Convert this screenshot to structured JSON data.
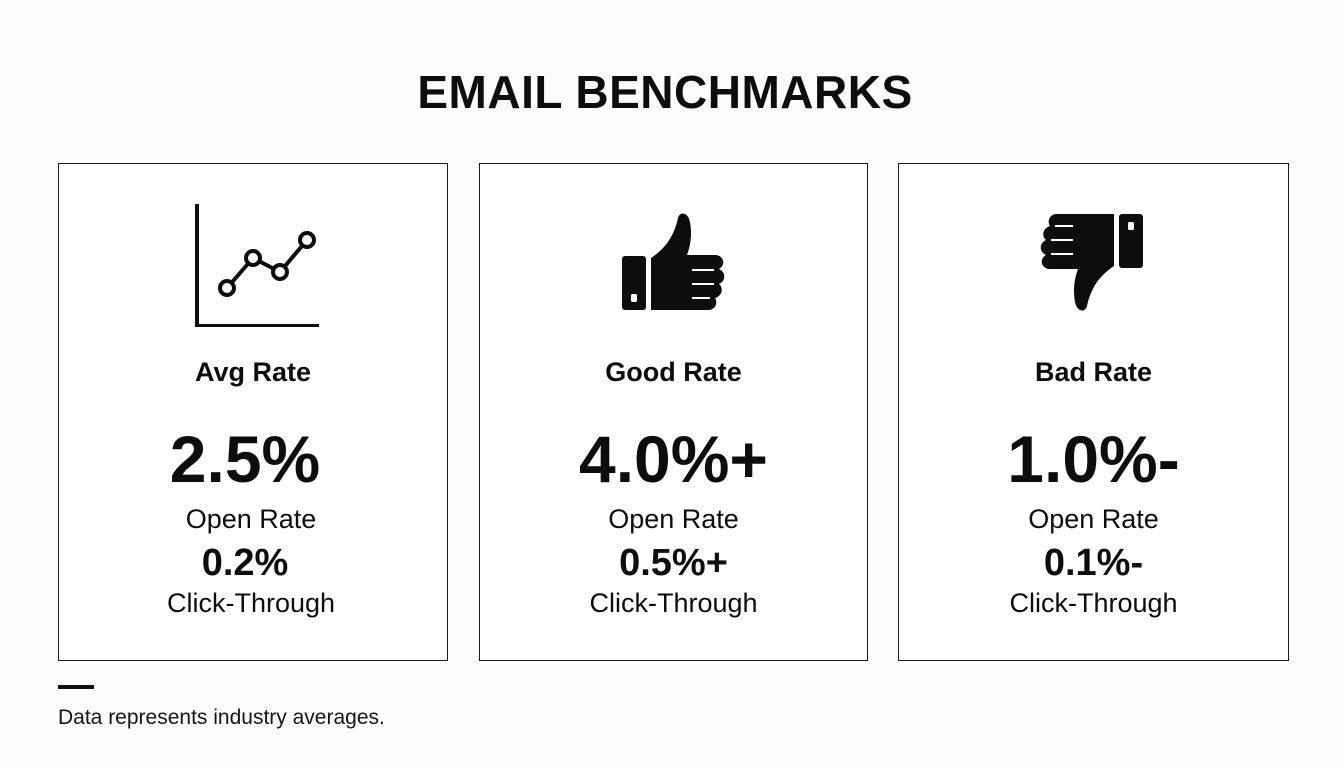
{
  "header": {
    "title": "EMAIL BENCHMARKS"
  },
  "cards": [
    {
      "icon": "line-chart-icon",
      "label": "Avg Rate",
      "open_rate_value": "2.5%",
      "open_rate_label": "Open Rate",
      "click_value": "0.2%",
      "click_label": "Click-Through"
    },
    {
      "icon": "thumbs-up-icon",
      "label": "Good Rate",
      "open_rate_value": "4.0%+",
      "open_rate_label": "Open Rate",
      "click_value": "0.5%+",
      "click_label": "Click-Through"
    },
    {
      "icon": "thumbs-down-icon",
      "label": "Bad Rate",
      "open_rate_value": "1.0%-",
      "open_rate_label": "Open Rate",
      "click_value": "0.1%-",
      "click_label": "Click-Through"
    }
  ],
  "footer": {
    "note": "Data represents industry averages."
  },
  "colors": {
    "background": "#fcfcfc",
    "text": "#0d0d0d",
    "border": "#1a1a1a"
  }
}
